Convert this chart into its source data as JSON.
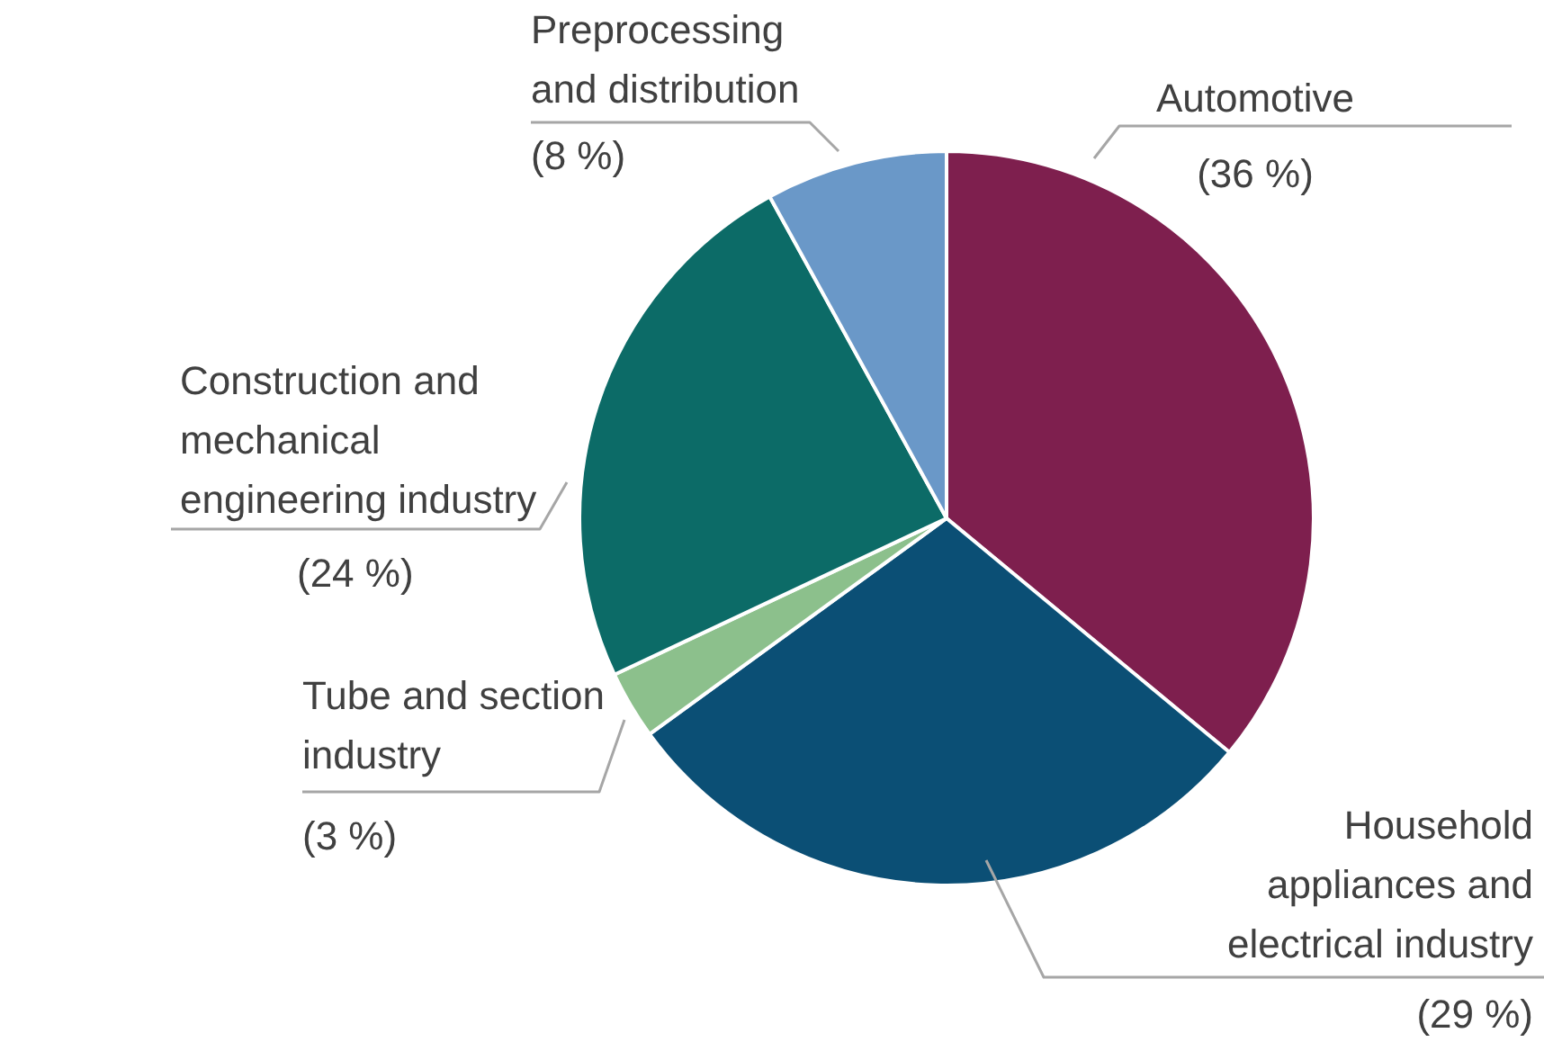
{
  "chart_data": {
    "type": "pie",
    "categories": [
      "Automotive",
      "Household appliances and electrical industry",
      "Tube and section industry",
      "Construction and mechanical engineering industry",
      "Preprocessing and distribution"
    ],
    "values": [
      36,
      29,
      3,
      24,
      8
    ],
    "colors": [
      "#7e1f4e",
      "#0b4f75",
      "#8cc08c",
      "#0c6b67",
      "#6a98c8"
    ],
    "value_labels": [
      "(36 %)",
      "(29 %)",
      "(3 %)",
      "(24 %)",
      "(8 %)"
    ],
    "legend": false
  }
}
